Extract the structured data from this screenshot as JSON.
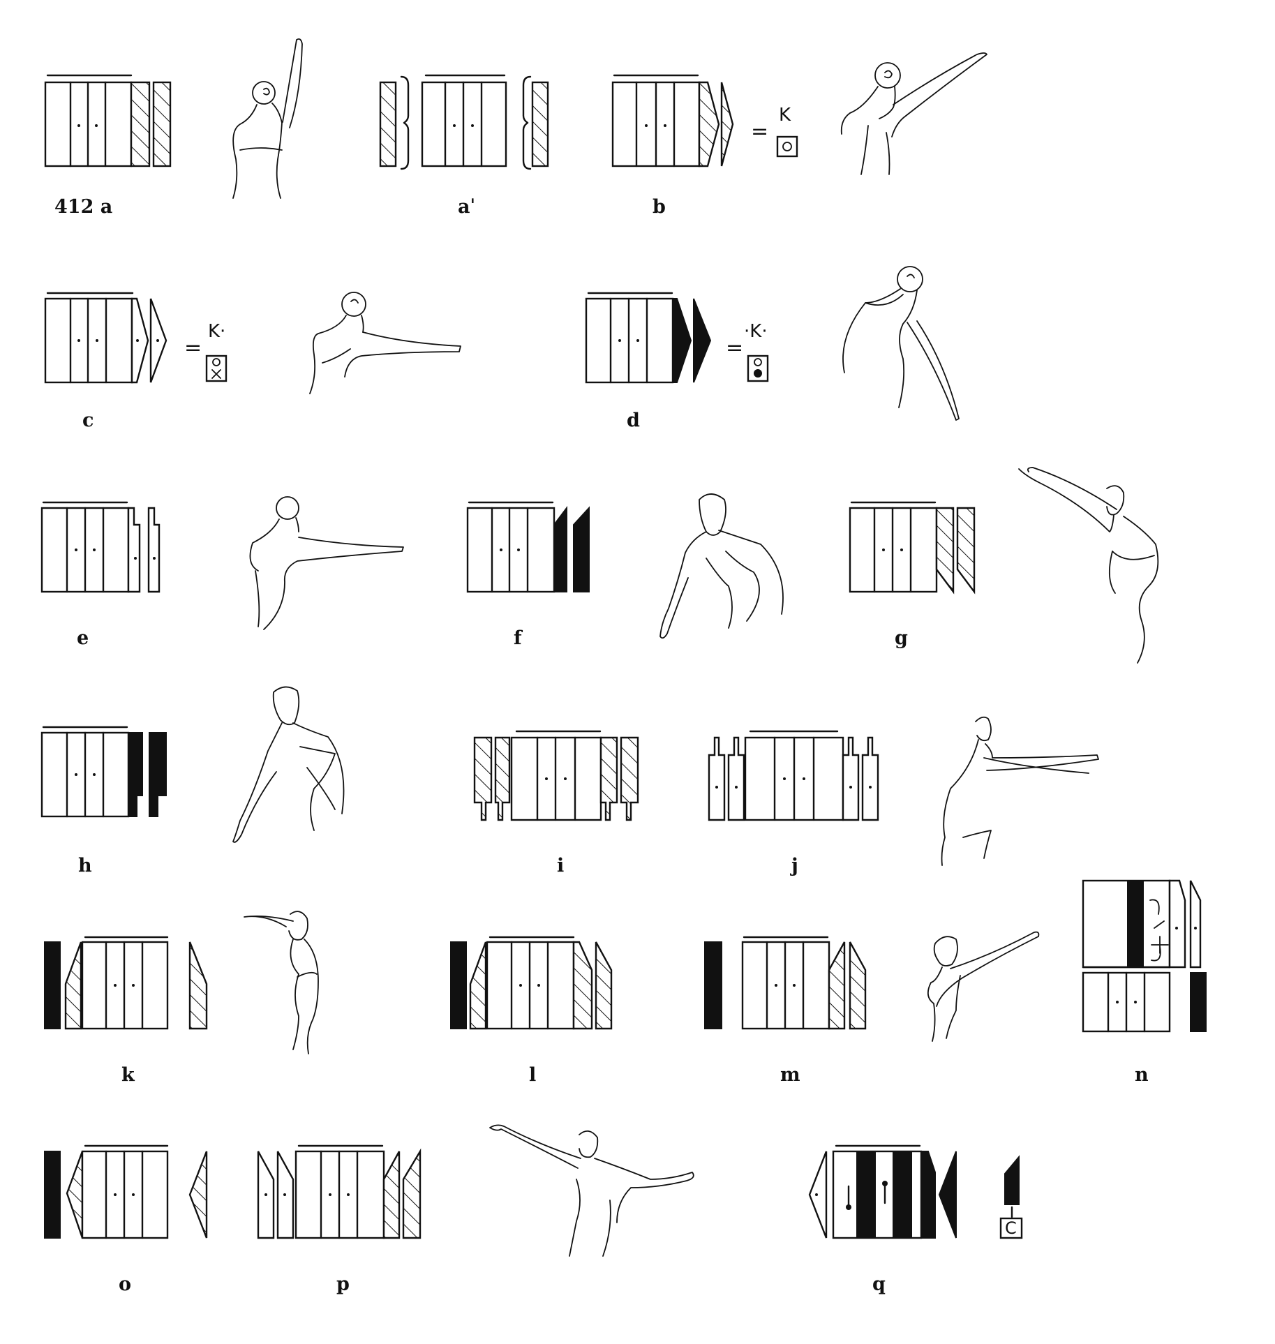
{
  "figure": {
    "labels": {
      "a": "412 a",
      "a_prime": "aˈ",
      "b": "b",
      "c": "c",
      "d": "d",
      "e": "e",
      "f": "f",
      "g": "g",
      "h": "h",
      "i": "i",
      "j": "j",
      "k": "k",
      "l": "l",
      "m": "m",
      "n": "n",
      "o": "o",
      "p": "p",
      "q": "q"
    },
    "equivalences": {
      "b": "=",
      "c": "=",
      "d": "="
    },
    "key_signs": {
      "b": "K",
      "c": "K·",
      "d": "·K·",
      "q": "C"
    },
    "colors": {
      "ink": "#111111",
      "paper": "#ffffff"
    }
  }
}
